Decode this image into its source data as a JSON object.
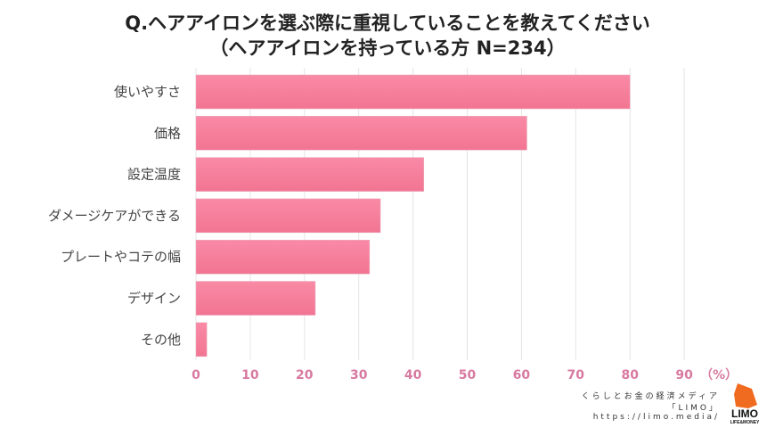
{
  "chart_data": {
    "type": "bar",
    "orientation": "horizontal",
    "title": "Q.ヘアアイロンを選ぶ際に重視していることを教えてください",
    "subtitle": "（ヘアアイロンを持っている方 N=234）",
    "categories": [
      "使いやすさ",
      "価格",
      "設定温度",
      "ダメージケアができる",
      "プレートやコテの幅",
      "デザイン",
      "その他"
    ],
    "values": [
      80,
      61,
      42,
      34,
      32,
      22,
      2
    ],
    "xlim": [
      0,
      90
    ],
    "xticks": [
      0,
      10,
      20,
      30,
      40,
      50,
      60,
      70,
      80,
      90
    ],
    "xunit": "（%）",
    "grid": true,
    "bar_color": "#f7809e"
  },
  "credit": {
    "line1": "くらしとお金の経済メディア",
    "line2": "「LIMO」",
    "line3": "https://limo.media/"
  },
  "logo": {
    "name": "LIMO",
    "tagline": "LIFE & MONEY"
  }
}
